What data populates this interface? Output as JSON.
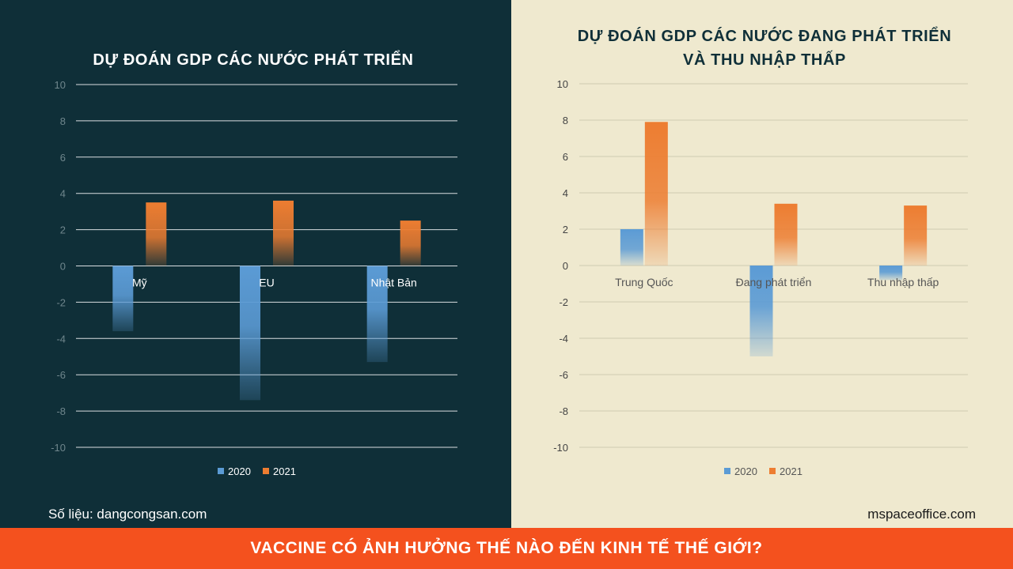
{
  "banner": {
    "text": "VACCINE CÓ ẢNH HƯỞNG THẾ NÀO ĐẾN KINH TẾ THẾ GIỚI?"
  },
  "footer": {
    "source_left": "Số liệu: dangcongsan.com",
    "source_right": "mspaceoffice.com"
  },
  "colors": {
    "left_background": "#0f2f38",
    "right_background": "#efe9cf",
    "banner": "#f4511e",
    "series_2020": "#5b9bd5",
    "series_2021": "#ed7d31"
  },
  "chart_data": [
    {
      "type": "bar",
      "title": "DỰ ĐOÁN GDP CÁC NƯỚC PHÁT TRIỂN",
      "categories": [
        "Mỹ",
        "EU",
        "Nhật Bản"
      ],
      "series": [
        {
          "name": "2020",
          "values": [
            -3.6,
            -7.4,
            -5.3
          ]
        },
        {
          "name": "2021",
          "values": [
            3.5,
            3.6,
            2.5
          ]
        }
      ],
      "ylim": [
        -10,
        10
      ],
      "yticks": [
        10,
        8,
        6,
        4,
        2,
        0,
        -2,
        -4,
        -6,
        -8,
        -10
      ],
      "grid": true,
      "legend": "bottom"
    },
    {
      "type": "bar",
      "title": "DỰ ĐOÁN GDP CÁC NƯỚC ĐANG PHÁT TRIỂN VÀ THU NHẬP THẤP",
      "categories": [
        "Trung Quốc",
        "Đang phát triển",
        "Thu nhập thấp"
      ],
      "series": [
        {
          "name": "2020",
          "values": [
            2.0,
            -5.0,
            -0.8
          ]
        },
        {
          "name": "2021",
          "values": [
            7.9,
            3.4,
            3.3
          ]
        }
      ],
      "ylim": [
        -10,
        10
      ],
      "yticks": [
        10,
        8,
        6,
        4,
        2,
        0,
        -2,
        -4,
        -6,
        -8,
        -10
      ],
      "grid": true,
      "legend": "bottom"
    }
  ]
}
